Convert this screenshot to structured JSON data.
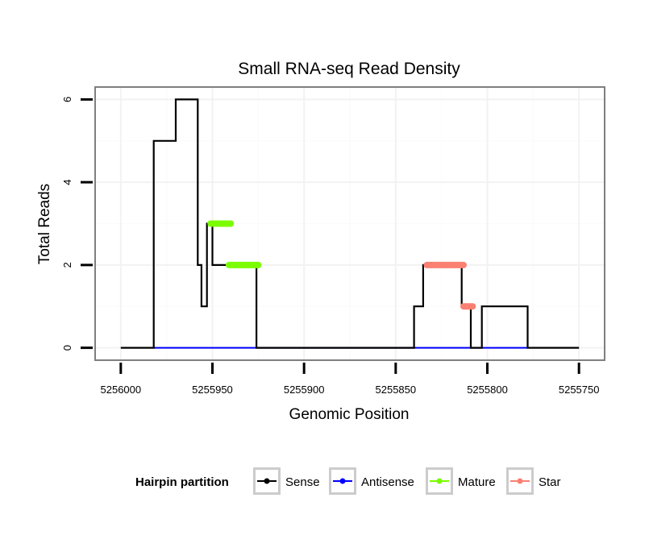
{
  "chart_data": {
    "type": "line",
    "title": "Small RNA-seq Read Density",
    "xlabel": "Genomic Position",
    "ylabel": "Total Reads",
    "xlim": [
      5256014,
      5255736
    ],
    "ylim": [
      -0.3,
      6.3
    ],
    "x_reversed": true,
    "x_ticks": [
      5256000,
      5255950,
      5255900,
      5255850,
      5255800,
      5255750
    ],
    "x_tick_labels": [
      "5256000",
      "5255950",
      "5255900",
      "5255850",
      "5255800",
      "5255750"
    ],
    "y_ticks": [
      0,
      2,
      4,
      6
    ],
    "y_tick_labels": [
      "0",
      "2",
      "4",
      "6"
    ],
    "grid": true,
    "legend": {
      "title": "Hairpin partition",
      "position": "bottom",
      "entries": [
        {
          "label": "Sense",
          "color": "#000000"
        },
        {
          "label": "Antisense",
          "color": "#0000ff"
        },
        {
          "label": "Mature",
          "color": "#7cfc00"
        },
        {
          "label": "Star",
          "color": "#fa8072"
        }
      ]
    },
    "series": [
      {
        "name": "Sense",
        "color": "#000000",
        "x": [
          5256000,
          5255982,
          5255982,
          5255970,
          5255970,
          5255958,
          5255958,
          5255956,
          5255956,
          5255953,
          5255953,
          5255950,
          5255950,
          5255942,
          5255942,
          5255926,
          5255926,
          5255840,
          5255840,
          5255835,
          5255835,
          5255814,
          5255814,
          5255809,
          5255809,
          5255803,
          5255803,
          5255778,
          5255778,
          5255750
        ],
        "y": [
          0,
          0,
          5,
          5,
          6,
          6,
          2,
          2,
          1,
          1,
          3,
          3,
          2,
          2,
          2,
          2,
          0,
          0,
          1,
          1,
          2,
          2,
          1,
          1,
          0,
          0,
          1,
          1,
          0,
          0
        ]
      },
      {
        "name": "Antisense",
        "color": "#0000ff",
        "x": [
          5255982,
          5255926,
          5255926,
          5255840,
          5255840,
          5255778
        ],
        "y": [
          0,
          0,
          0,
          0,
          0,
          0
        ]
      },
      {
        "name": "Mature",
        "color": "#7cfc00",
        "segments": [
          {
            "x": [
              5255951,
              5255940
            ],
            "y": [
              3,
              3
            ]
          },
          {
            "x": [
              5255941,
              5255925
            ],
            "y": [
              2,
              2
            ]
          }
        ]
      },
      {
        "name": "Star",
        "color": "#fa8072",
        "segments": [
          {
            "x": [
              5255833,
              5255813
            ],
            "y": [
              2,
              2
            ]
          },
          {
            "x": [
              5255813,
              5255808
            ],
            "y": [
              1,
              1
            ]
          }
        ]
      }
    ]
  }
}
